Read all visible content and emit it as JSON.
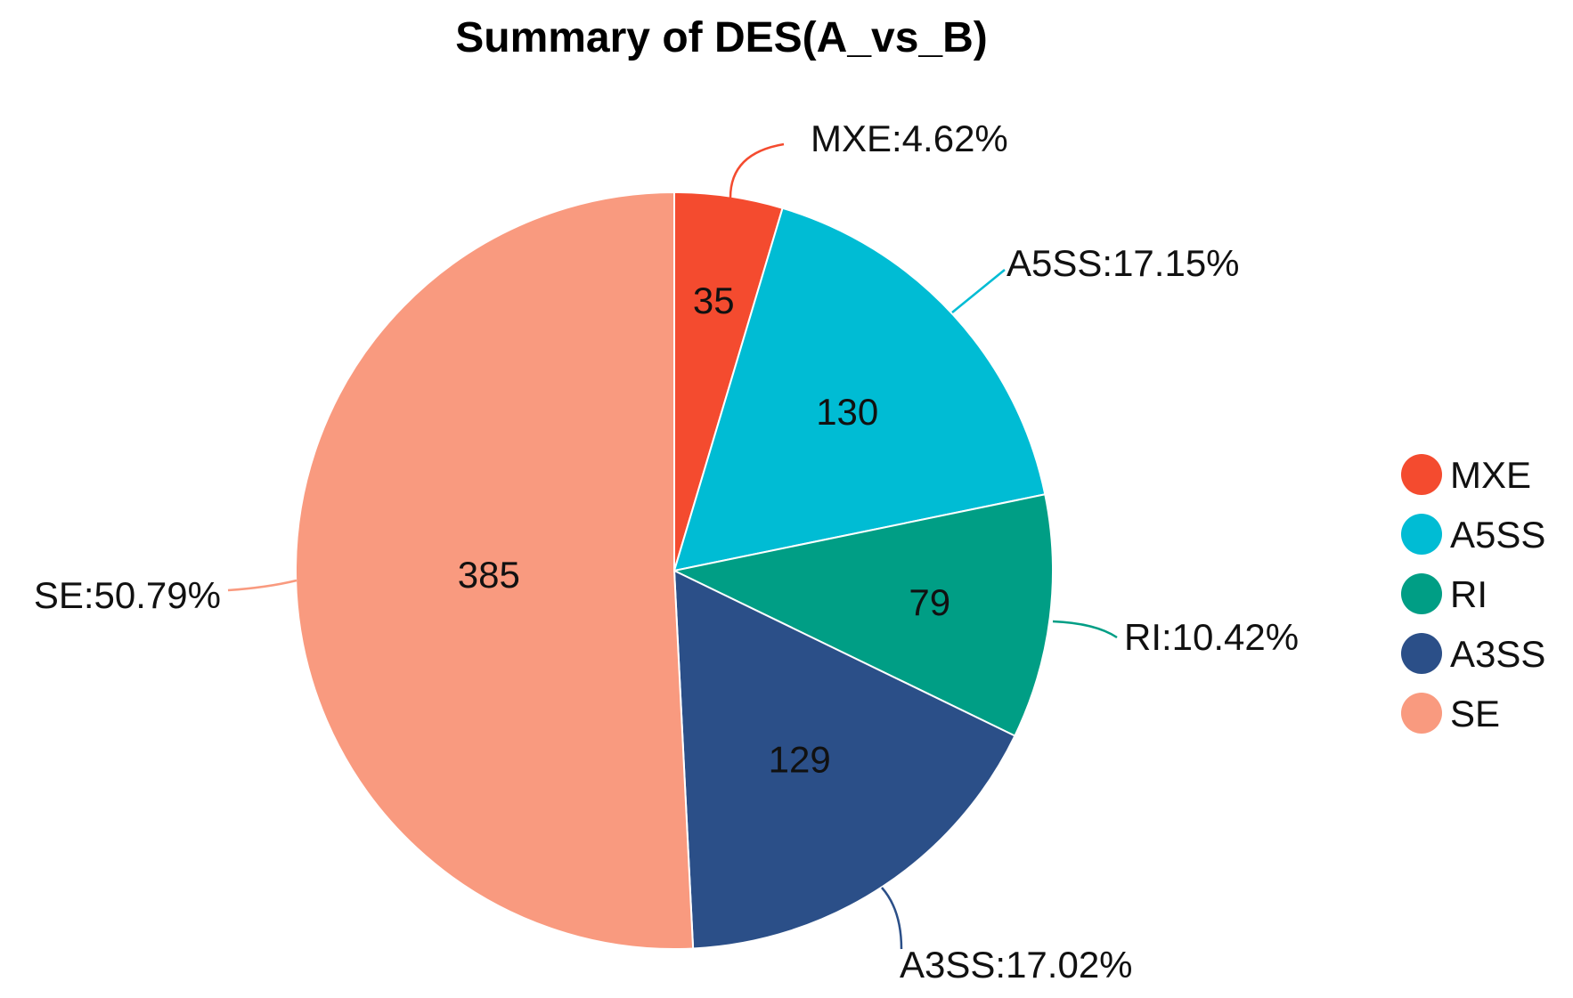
{
  "chart_data": {
    "type": "pie",
    "title": "Summary of DES(A_vs_B)",
    "categories": [
      "MXE",
      "A5SS",
      "RI",
      "A3SS",
      "SE"
    ],
    "values": [
      35,
      130,
      79,
      129,
      385
    ],
    "percent_labels": [
      "MXE:4.62%",
      "A5SS:17.15%",
      "RI:10.42%",
      "A3SS:17.02%",
      "SE:50.79%"
    ],
    "colors": [
      "#f44b2f",
      "#00bcd4",
      "#009e85",
      "#2b4f88",
      "#f99a7f"
    ],
    "legend": {
      "placement": "right",
      "entries": [
        "MXE",
        "A5SS",
        "RI",
        "A3SS",
        "SE"
      ]
    },
    "start_angle": "12 o'clock",
    "direction": "clockwise"
  }
}
